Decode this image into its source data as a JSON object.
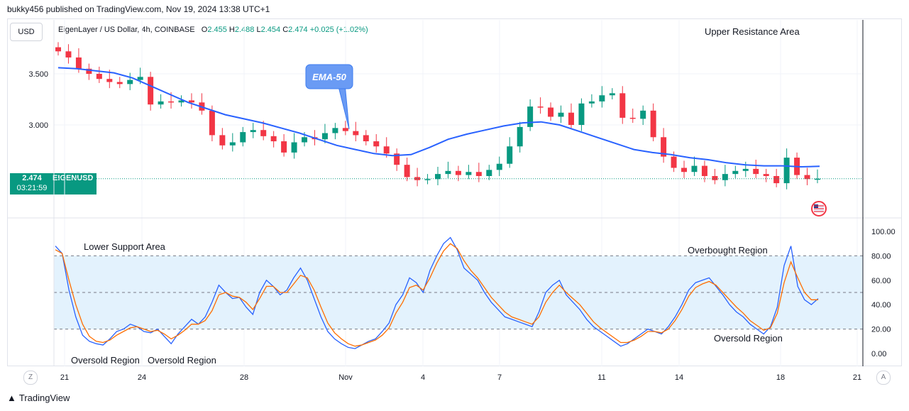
{
  "header": {
    "published_by": "bukky456 published on TradingView.com, Nov 19, 2024 13:38 UTC+1"
  },
  "toolbar": {
    "currency": "USD",
    "z_button": "Z",
    "a_button": "A"
  },
  "legend": {
    "symbol": "EigenLayer / US Dollar, 4h, COINBASE",
    "open_label": "O",
    "open": "2.455",
    "high_label": "H",
    "high": "2.488",
    "low_label": "L",
    "low": "2.454",
    "close_label": "C",
    "close": "2.474",
    "change": "+0.025 (+1.02%)"
  },
  "price_tag": {
    "price": "2.474",
    "countdown": "03:21:59",
    "symbol": "EIGENUSD"
  },
  "footer": {
    "brand": "TradingView",
    "logo": "tradingview-logo-icon"
  },
  "colors": {
    "up": "#089981",
    "down": "#f23645",
    "ema": "#2962ff",
    "rsi": "#2962ff",
    "rsi_ma": "#ff6d00",
    "band": "#e3f2fd"
  },
  "chart_data": [
    {
      "type": "candlestick",
      "symbol": "EIGENUSD",
      "timeframe": "4h",
      "yticks": [
        "3.500",
        "3.000"
      ],
      "ylim": [
        2.15,
        4.0
      ],
      "xticks": [
        "21",
        "24",
        "28",
        "Nov",
        "4",
        "7",
        "11",
        "14",
        "18",
        "21"
      ],
      "annotations": [
        "EMA-50",
        "Upper Resistance Area"
      ],
      "ema_label": "EMA-50",
      "close_path": [
        3.72,
        3.66,
        3.55,
        3.5,
        3.45,
        3.42,
        3.4,
        3.44,
        3.47,
        3.2,
        3.23,
        3.22,
        3.24,
        3.22,
        3.14,
        2.9,
        2.8,
        2.83,
        2.93,
        2.95,
        2.89,
        2.84,
        2.73,
        2.83,
        2.88,
        2.86,
        2.92,
        2.97,
        2.94,
        2.9,
        2.84,
        2.79,
        2.72,
        2.61,
        2.49,
        2.46,
        2.47,
        2.52,
        2.55,
        2.51,
        2.54,
        2.5,
        2.56,
        2.62,
        2.79,
        2.98,
        3.18,
        3.17,
        3.08,
        3.12,
        3.0,
        3.21,
        3.23,
        3.29,
        3.31,
        3.07,
        3.06,
        3.14,
        2.88,
        2.69,
        2.58,
        2.54,
        2.6,
        2.5,
        2.46,
        2.52,
        2.55,
        2.57,
        2.52,
        2.5,
        2.43,
        2.68,
        2.51,
        2.47,
        2.474
      ],
      "ema_path": [
        3.56,
        3.55,
        3.53,
        3.51,
        3.46,
        3.38,
        3.3,
        3.22,
        3.16,
        3.1,
        3.06,
        3.02,
        2.97,
        2.92,
        2.86,
        2.8,
        2.76,
        2.72,
        2.7,
        2.71,
        2.78,
        2.86,
        2.91,
        2.95,
        2.99,
        3.02,
        3.03,
        3.0,
        2.94,
        2.88,
        2.82,
        2.76,
        2.73,
        2.71,
        2.68,
        2.66,
        2.63,
        2.61,
        2.6,
        2.6,
        2.59,
        2.595
      ]
    },
    {
      "type": "line",
      "indicator": "RSI",
      "ylim": [
        0,
        100
      ],
      "yticks": [
        "100.00",
        "80.00",
        "60.00",
        "40.00",
        "20.00",
        "0.00"
      ],
      "levels": [
        80,
        50,
        20
      ],
      "annotations": [
        "Lower Support Area",
        "Overbought Region",
        "Oversold Region",
        "Oversold Region",
        "Oversold Region"
      ],
      "series": [
        {
          "values": [
            88,
            82,
            52,
            30,
            15,
            10,
            8,
            7,
            12,
            18,
            20,
            24,
            22,
            18,
            17,
            20,
            14,
            8,
            16,
            22,
            28,
            24,
            30,
            42,
            56,
            50,
            45,
            46,
            38,
            32,
            50,
            60,
            55,
            48,
            52,
            62,
            70,
            60,
            45,
            30,
            18,
            12,
            8,
            5,
            4,
            7,
            10,
            12,
            18,
            25,
            40,
            48,
            62,
            58,
            50,
            68,
            80,
            90,
            95,
            85,
            70,
            65,
            60,
            50,
            42,
            36,
            30,
            28,
            26,
            24,
            22,
            34,
            50,
            56,
            60,
            48,
            42,
            36,
            28,
            22,
            18,
            14,
            10,
            6,
            8,
            12,
            16,
            20,
            18,
            16,
            22,
            30,
            40,
            52,
            58,
            60,
            62,
            55,
            48,
            40,
            34,
            30,
            24,
            20,
            16,
            22,
            38,
            72,
            88,
            55,
            44,
            40,
            45
          ]
        },
        {
          "values": [
            85,
            82,
            60,
            40,
            24,
            14,
            10,
            9,
            11,
            15,
            18,
            21,
            22,
            20,
            18,
            19,
            16,
            12,
            15,
            19,
            24,
            24,
            27,
            35,
            48,
            50,
            47,
            46,
            42,
            36,
            45,
            55,
            55,
            50,
            50,
            57,
            64,
            62,
            52,
            38,
            25,
            17,
            12,
            8,
            6,
            7,
            9,
            11,
            15,
            21,
            33,
            42,
            54,
            56,
            52,
            62,
            74,
            84,
            90,
            86,
            76,
            68,
            62,
            54,
            46,
            40,
            34,
            30,
            28,
            26,
            24,
            30,
            42,
            50,
            56,
            50,
            45,
            40,
            33,
            26,
            21,
            17,
            13,
            9,
            9,
            11,
            14,
            18,
            18,
            17,
            20,
            27,
            36,
            47,
            54,
            57,
            59,
            56,
            50,
            44,
            38,
            33,
            27,
            23,
            19,
            21,
            33,
            58,
            75,
            62,
            50,
            44,
            44
          ]
        }
      ]
    }
  ]
}
